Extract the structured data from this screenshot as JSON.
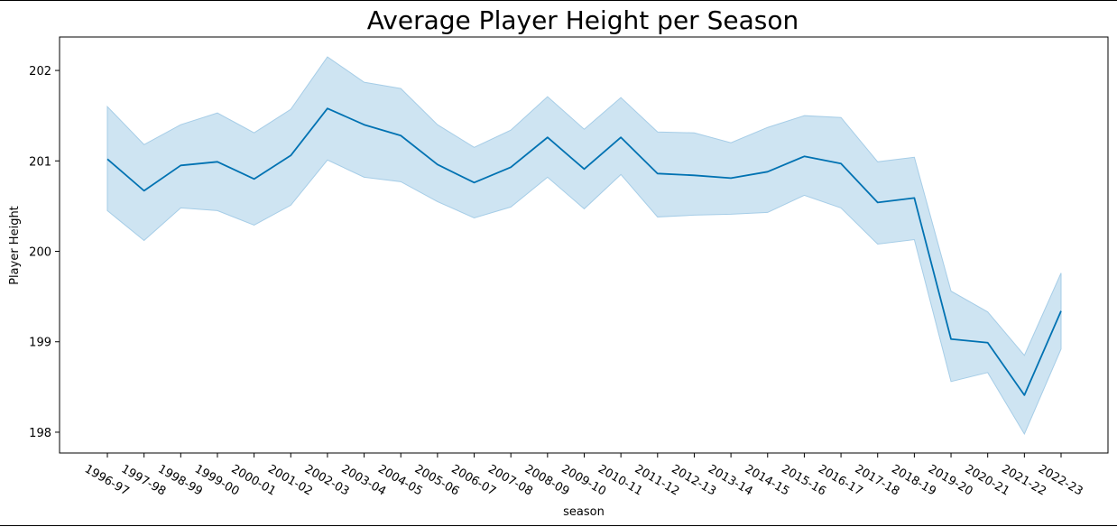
{
  "chart_data": {
    "type": "line",
    "title": "Average Player Height per Season",
    "xlabel": "season",
    "ylabel": "Player Height",
    "categories": [
      "1996-97",
      "1997-98",
      "1998-99",
      "1999-00",
      "2000-01",
      "2001-02",
      "2002-03",
      "2003-04",
      "2004-05",
      "2005-06",
      "2006-07",
      "2007-08",
      "2008-09",
      "2009-10",
      "2010-11",
      "2011-12",
      "2012-13",
      "2013-14",
      "2014-15",
      "2015-16",
      "2016-17",
      "2017-18",
      "2018-19",
      "2019-20",
      "2020-21",
      "2021-22",
      "2022-23"
    ],
    "series": [
      {
        "values": [
          201.02,
          200.67,
          200.95,
          200.99,
          200.8,
          201.06,
          201.58,
          201.4,
          201.28,
          200.96,
          200.76,
          200.93,
          201.26,
          200.91,
          201.26,
          200.86,
          200.84,
          200.81,
          200.88,
          201.05,
          200.97,
          200.54,
          200.59,
          199.03,
          198.99,
          198.41,
          199.34
        ],
        "ci_lower": [
          200.45,
          200.12,
          200.48,
          200.45,
          200.29,
          200.51,
          201.01,
          200.82,
          200.77,
          200.55,
          200.37,
          200.49,
          200.82,
          200.47,
          200.85,
          200.38,
          200.4,
          200.41,
          200.43,
          200.62,
          200.48,
          200.08,
          200.13,
          198.56,
          198.66,
          197.98,
          198.92
        ],
        "ci_upper": [
          201.6,
          201.18,
          201.4,
          201.53,
          201.31,
          201.57,
          202.15,
          201.87,
          201.8,
          201.4,
          201.15,
          201.34,
          201.71,
          201.35,
          201.7,
          201.32,
          201.31,
          201.2,
          201.37,
          201.5,
          201.48,
          200.99,
          201.04,
          199.56,
          199.33,
          198.85,
          199.76
        ]
      }
    ],
    "yticks": [
      198,
      199,
      200,
      201,
      202
    ],
    "ylim": [
      197.77,
      202.37
    ],
    "grid": false,
    "line_color": "#0072b2",
    "band_color": "#a6cde7"
  }
}
